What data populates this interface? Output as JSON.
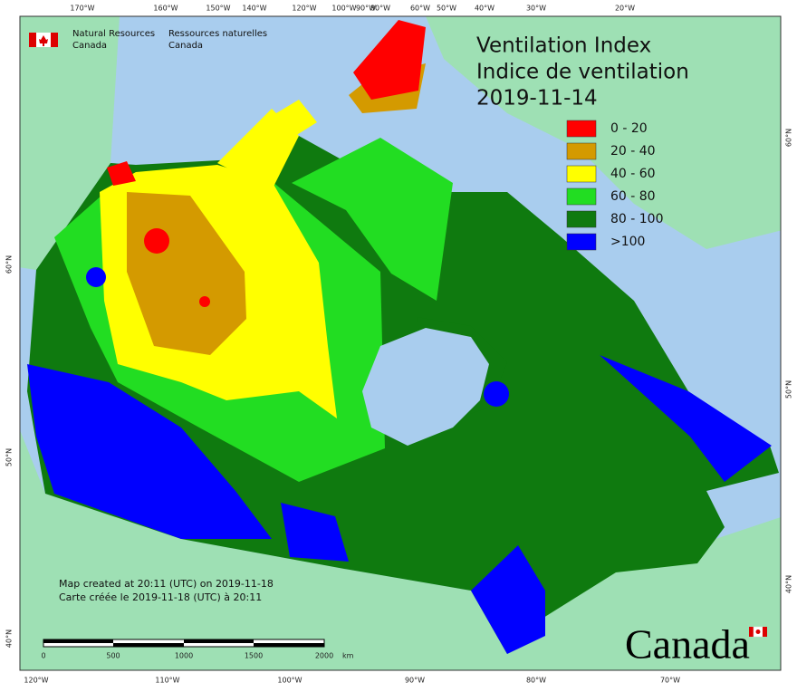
{
  "header": {
    "agency_en_1": "Natural Resources",
    "agency_en_2": "Canada",
    "agency_fr_1": "Ressources naturelles",
    "agency_fr_2": "Canada"
  },
  "title": [
    "Ventilation Index",
    "Indice de ventilation",
    "2019-11-14"
  ],
  "legend": [
    {
      "label": "0 - 20",
      "color": "#ff0000"
    },
    {
      "label": "20 - 40",
      "color": "#d49a00"
    },
    {
      "label": "40 - 60",
      "color": "#ffff00"
    },
    {
      "label": "60 - 80",
      "color": "#22dd22"
    },
    {
      "label": "80 - 100",
      "color": "#0f7a0f"
    },
    {
      "label": ">100",
      "color": "#0000ff"
    }
  ],
  "graticule": {
    "top": [
      "170°W",
      "160°W",
      "150°W",
      "140°W",
      "120°W",
      "100°W",
      "90°W",
      "80°W",
      "60°W",
      "50°W",
      "40°W",
      "30°W",
      "20°W"
    ],
    "bottom": [
      "120°W",
      "110°W",
      "100°W",
      "90°W",
      "80°W",
      "70°W"
    ],
    "left": [
      "60°N",
      "50°N",
      "40°N"
    ],
    "right": [
      "60°N",
      "50°N",
      "40°N"
    ]
  },
  "footer": {
    "created_en": "Map created at 20:11 (UTC) on 2019-11-18",
    "created_fr": "Carte créée le 2019-11-18 (UTC) à 20:11"
  },
  "scale_bar": {
    "labels": [
      "0",
      "500",
      "1000",
      "1500",
      "2000"
    ],
    "unit": "km"
  },
  "wordmark": "Canada"
}
